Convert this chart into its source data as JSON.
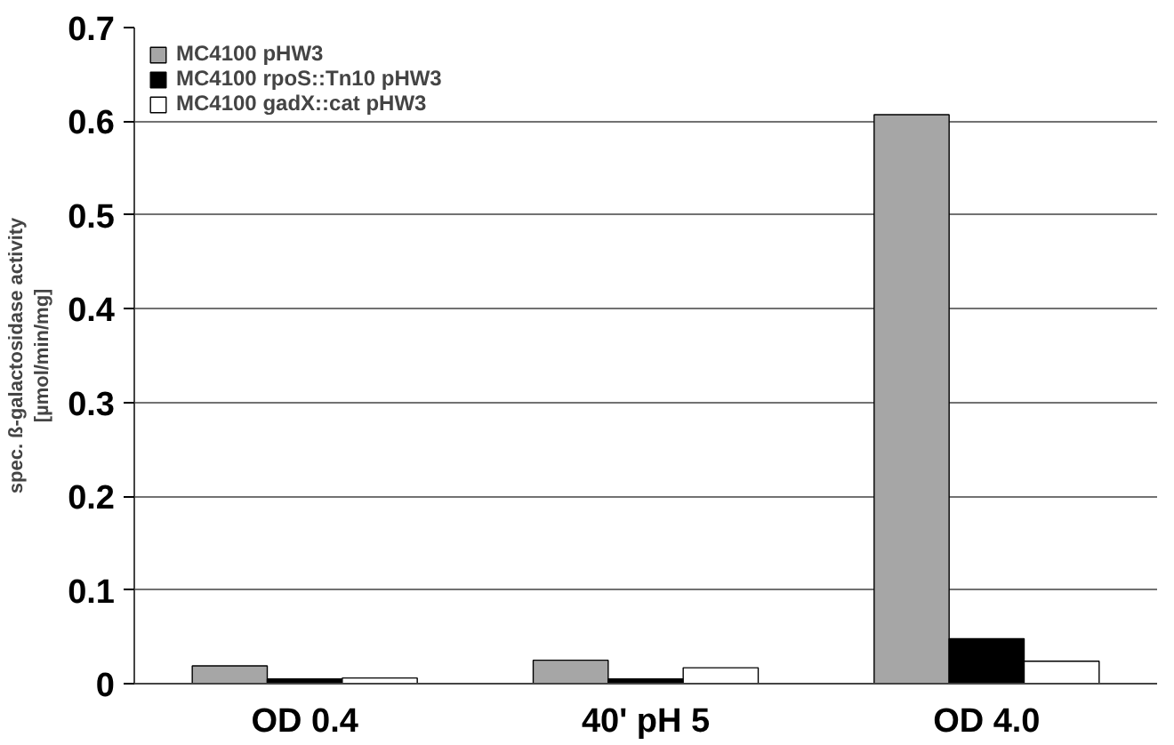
{
  "chart_data": {
    "type": "bar",
    "ylabel": "spec. ß-galactosidase activity\n[µmol/min/mg]",
    "categories": [
      "OD 0.4",
      "40' pH 5",
      "OD 4.0"
    ],
    "series": [
      {
        "name": "MC4100 pHW3",
        "color": "#a6a6a6",
        "values": [
          0.019,
          0.025,
          0.607
        ]
      },
      {
        "name": "MC4100 rpoS::Tn10 pHW3",
        "color": "#000000",
        "values": [
          0.005,
          0.005,
          0.048
        ]
      },
      {
        "name": "MC4100 gadX::cat pHW3",
        "color": "#ffffff",
        "values": [
          0.006,
          0.017,
          0.024
        ]
      }
    ],
    "ylim": [
      0,
      0.7
    ],
    "yticks": [
      0,
      0.1,
      0.2,
      0.3,
      0.4,
      0.5,
      0.6,
      0.7
    ],
    "grid": "y",
    "legend": "top left"
  }
}
